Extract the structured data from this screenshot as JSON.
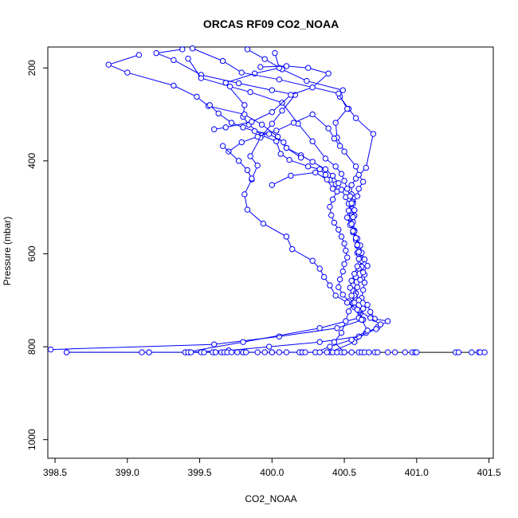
{
  "chart_data": {
    "type": "line",
    "title": "ORCAS RF09 CO2_NOAA",
    "xlabel": "CO2_NOAA",
    "ylabel": "Pressure (mbar)",
    "xlim": [
      398.45,
      401.53
    ],
    "ylim": [
      1040,
      155
    ],
    "y_reversed": true,
    "grid": false,
    "xticks": [
      398.5,
      399.0,
      399.5,
      400.0,
      400.5,
      401.0,
      401.5
    ],
    "xtick_labels": [
      "398.5",
      "399.0",
      "399.5",
      "400.0",
      "400.5",
      "401.0",
      "401.5"
    ],
    "yticks": [
      200,
      400,
      600,
      800,
      1000
    ],
    "ytick_labels": [
      "200",
      "400",
      "600",
      "800",
      "1000"
    ],
    "series_color": "#0000ff",
    "base_line_color": "#000000",
    "base_line": {
      "x": [
        398.58,
        401.47
      ],
      "y": [
        812,
        812
      ]
    },
    "series": [
      {
        "points": [
          [
            399.83,
            160
          ],
          [
            399.95,
            181
          ],
          [
            400.07,
            203
          ],
          [
            400.24,
            228
          ],
          [
            400.49,
            248
          ],
          [
            400.47,
            262
          ],
          [
            400.53,
            288
          ],
          [
            400.58,
            308
          ],
          [
            400.7,
            342
          ],
          [
            400.65,
            415
          ],
          [
            400.58,
            438
          ],
          [
            400.55,
            452
          ],
          [
            400.55,
            472
          ],
          [
            400.56,
            488
          ],
          [
            400.55,
            503
          ],
          [
            400.57,
            518
          ],
          [
            400.56,
            532
          ],
          [
            400.57,
            550
          ],
          [
            400.58,
            568
          ],
          [
            400.59,
            583
          ],
          [
            400.59,
            598
          ],
          [
            400.61,
            610
          ],
          [
            400.62,
            628
          ],
          [
            400.64,
            645
          ],
          [
            400.64,
            662
          ],
          [
            400.63,
            678
          ],
          [
            400.62,
            695
          ],
          [
            400.66,
            710
          ],
          [
            400.68,
            725
          ],
          [
            400.71,
            740
          ],
          [
            400.8,
            745
          ],
          [
            400.73,
            758
          ],
          [
            400.65,
            770
          ],
          [
            400.57,
            790
          ],
          [
            400.4,
            812
          ],
          [
            400.2,
            812
          ],
          [
            400.0,
            812
          ],
          [
            399.8,
            812
          ],
          [
            399.6,
            812
          ],
          [
            399.43,
            812
          ],
          [
            399.15,
            812
          ],
          [
            398.58,
            812
          ]
        ]
      },
      {
        "points": [
          [
            400.02,
            168
          ],
          [
            400.05,
            200
          ],
          [
            399.88,
            212
          ],
          [
            399.68,
            232
          ],
          [
            399.81,
            280
          ],
          [
            399.8,
            305
          ],
          [
            399.84,
            322
          ],
          [
            399.93,
            345
          ],
          [
            400.03,
            358
          ],
          [
            400.06,
            385
          ],
          [
            400.12,
            398
          ],
          [
            400.25,
            412
          ],
          [
            400.33,
            418
          ],
          [
            400.37,
            430
          ],
          [
            400.4,
            441
          ],
          [
            400.44,
            450
          ],
          [
            400.45,
            466
          ],
          [
            400.42,
            483
          ],
          [
            400.4,
            499
          ],
          [
            400.41,
            517
          ],
          [
            400.43,
            533
          ],
          [
            400.46,
            548
          ],
          [
            400.48,
            563
          ],
          [
            400.5,
            578
          ],
          [
            400.51,
            593
          ],
          [
            400.52,
            608
          ],
          [
            400.5,
            622
          ],
          [
            400.49,
            638
          ],
          [
            400.47,
            655
          ],
          [
            400.46,
            672
          ],
          [
            400.49,
            688
          ],
          [
            400.53,
            702
          ],
          [
            400.57,
            715
          ],
          [
            400.61,
            728
          ],
          [
            400.63,
            742
          ],
          [
            400.45,
            760
          ],
          [
            400.05,
            778
          ],
          [
            399.6,
            795
          ],
          [
            398.47,
            806
          ]
        ]
      },
      {
        "points": [
          [
            399.38,
            160
          ],
          [
            399.2,
            168
          ],
          [
            399.32,
            183
          ],
          [
            399.51,
            215
          ],
          [
            399.77,
            233
          ],
          [
            400.0,
            248
          ],
          [
            400.16,
            258
          ],
          [
            400.07,
            292
          ],
          [
            400.0,
            320
          ],
          [
            399.92,
            350
          ],
          [
            399.85,
            390
          ],
          [
            399.9,
            410
          ],
          [
            399.86,
            440
          ],
          [
            399.81,
            472
          ],
          [
            399.83,
            505
          ],
          [
            399.94,
            535
          ],
          [
            400.1,
            563
          ],
          [
            400.14,
            590
          ],
          [
            400.28,
            615
          ],
          [
            400.33,
            632
          ],
          [
            400.36,
            650
          ],
          [
            400.4,
            668
          ],
          [
            400.44,
            690
          ],
          [
            400.52,
            705
          ],
          [
            400.6,
            722
          ],
          [
            400.68,
            738
          ],
          [
            400.75,
            752
          ],
          [
            400.72,
            762
          ],
          [
            400.6,
            778
          ],
          [
            400.33,
            790
          ],
          [
            399.98,
            800
          ],
          [
            399.7,
            808
          ],
          [
            399.4,
            812
          ]
        ]
      },
      {
        "points": [
          [
            399.08,
            172
          ],
          [
            398.87,
            193
          ],
          [
            399.0,
            210
          ],
          [
            399.32,
            238
          ],
          [
            399.48,
            262
          ],
          [
            399.56,
            282
          ],
          [
            399.81,
            300
          ],
          [
            399.93,
            322
          ],
          [
            400.04,
            348
          ],
          [
            400.1,
            372
          ],
          [
            400.2,
            388
          ],
          [
            400.28,
            402
          ],
          [
            400.37,
            418
          ],
          [
            400.42,
            432
          ],
          [
            400.46,
            448
          ],
          [
            400.48,
            462
          ],
          [
            400.51,
            478
          ],
          [
            400.53,
            492
          ],
          [
            400.54,
            508
          ],
          [
            400.53,
            523
          ],
          [
            400.55,
            538
          ],
          [
            400.56,
            554
          ],
          [
            400.58,
            570
          ],
          [
            400.6,
            585
          ],
          [
            400.6,
            600
          ],
          [
            400.62,
            615
          ],
          [
            400.6,
            632
          ],
          [
            400.58,
            650
          ],
          [
            400.56,
            668
          ],
          [
            400.58,
            685
          ],
          [
            400.6,
            700
          ],
          [
            400.63,
            718
          ],
          [
            400.6,
            738
          ],
          [
            400.33,
            760
          ],
          [
            399.8,
            790
          ],
          [
            399.4,
            812
          ]
        ]
      },
      {
        "points": [
          [
            399.45,
            158
          ],
          [
            399.66,
            185
          ],
          [
            399.79,
            210
          ],
          [
            400.05,
            225
          ],
          [
            400.46,
            255
          ],
          [
            400.52,
            288
          ],
          [
            400.44,
            318
          ],
          [
            400.45,
            350
          ],
          [
            400.5,
            380
          ],
          [
            400.58,
            412
          ],
          [
            400.6,
            430
          ],
          [
            400.63,
            445
          ],
          [
            400.6,
            460
          ],
          [
            400.59,
            476
          ],
          [
            400.56,
            492
          ],
          [
            400.53,
            507
          ],
          [
            400.52,
            522
          ],
          [
            400.54,
            538
          ],
          [
            400.57,
            552
          ],
          [
            400.59,
            567
          ],
          [
            400.61,
            582
          ],
          [
            400.62,
            598
          ],
          [
            400.64,
            612
          ],
          [
            400.66,
            626
          ],
          [
            400.63,
            640
          ],
          [
            400.61,
            656
          ],
          [
            400.59,
            672
          ],
          [
            400.57,
            690
          ],
          [
            400.56,
            706
          ],
          [
            400.53,
            724
          ],
          [
            400.51,
            745
          ],
          [
            400.48,
            770
          ],
          [
            400.43,
            790
          ],
          [
            400.5,
            812
          ]
        ]
      },
      {
        "points": [
          [
            399.42,
            180
          ],
          [
            399.51,
            222
          ],
          [
            399.71,
            240
          ],
          [
            399.85,
            252
          ],
          [
            400.07,
            275
          ],
          [
            400.18,
            320
          ],
          [
            400.28,
            358
          ],
          [
            400.37,
            395
          ],
          [
            400.44,
            412
          ],
          [
            400.48,
            428
          ],
          [
            400.5,
            443
          ],
          [
            400.52,
            460
          ],
          [
            400.54,
            476
          ],
          [
            400.55,
            491
          ],
          [
            400.57,
            506
          ],
          [
            400.56,
            521
          ],
          [
            400.55,
            536
          ],
          [
            400.56,
            551
          ],
          [
            400.58,
            566
          ],
          [
            400.59,
            581
          ],
          [
            400.6,
            596
          ],
          [
            400.6,
            611
          ],
          [
            400.59,
            627
          ],
          [
            400.57,
            643
          ],
          [
            400.55,
            658
          ],
          [
            400.54,
            673
          ],
          [
            400.55,
            690
          ],
          [
            400.57,
            705
          ],
          [
            400.59,
            720
          ],
          [
            400.62,
            742
          ],
          [
            400.66,
            765
          ],
          [
            400.55,
            785
          ],
          [
            400.4,
            800
          ],
          [
            400.3,
            812
          ]
        ]
      },
      {
        "points": [
          [
            399.6,
            332
          ],
          [
            399.68,
            328
          ],
          [
            399.86,
            316
          ],
          [
            400.0,
            295
          ],
          [
            400.13,
            258
          ],
          [
            400.28,
            242
          ],
          [
            400.39,
            212
          ],
          [
            400.25,
            200
          ],
          [
            400.1,
            196
          ],
          [
            399.92,
            198
          ]
        ]
      },
      {
        "points": [
          [
            399.7,
            380
          ],
          [
            399.79,
            360
          ],
          [
            399.9,
            348
          ],
          [
            400.03,
            335
          ],
          [
            400.15,
            318
          ],
          [
            400.28,
            300
          ],
          [
            400.39,
            330
          ],
          [
            400.43,
            352
          ],
          [
            400.47,
            368
          ]
        ]
      },
      {
        "points": [
          [
            399.66,
            368
          ],
          [
            399.77,
            400
          ],
          [
            399.83,
            420
          ],
          [
            399.86,
            438
          ]
        ]
      },
      {
        "points": [
          [
            399.57,
            280
          ],
          [
            399.63,
            298
          ],
          [
            399.72,
            318
          ],
          [
            399.8,
            328
          ],
          [
            399.88,
            336
          ],
          [
            399.98,
            342
          ],
          [
            400.08,
            360
          ],
          [
            400.1,
            372
          ],
          [
            400.2,
            393
          ]
        ]
      },
      {
        "points": [
          [
            400.0,
            452
          ],
          [
            400.13,
            432
          ],
          [
            400.3,
            425
          ],
          [
            400.38,
            440
          ],
          [
            400.42,
            460
          ]
        ]
      }
    ],
    "bottom_markers_x": [
      398.58,
      399.1,
      399.15,
      399.42,
      399.44,
      399.51,
      399.53,
      399.59,
      399.61,
      399.65,
      399.67,
      399.69,
      399.72,
      399.76,
      399.8,
      399.82,
      399.9,
      399.95,
      400.0,
      400.05,
      400.1,
      400.19,
      400.21,
      400.23,
      400.3,
      400.33,
      400.38,
      400.42,
      400.45,
      400.48,
      400.5,
      400.55,
      400.6,
      400.62,
      400.64,
      400.67,
      400.71,
      400.73,
      400.8,
      400.85,
      400.92,
      400.97,
      400.99,
      401.0,
      401.27,
      401.29,
      401.38,
      401.43,
      401.44,
      401.47
    ],
    "bottom_markers_y": 812
  }
}
